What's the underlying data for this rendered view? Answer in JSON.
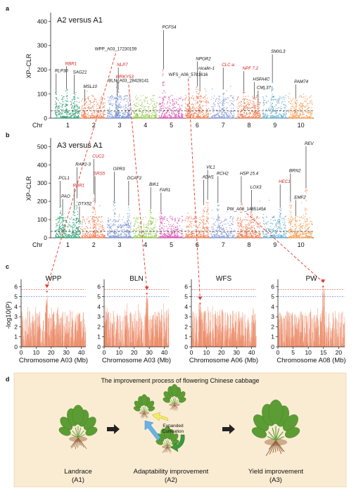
{
  "panel_letters": {
    "a": "a",
    "b": "b",
    "c": "c",
    "d": "d"
  },
  "chart_data": [
    {
      "type": "scatter",
      "panel": "a",
      "comparison": "A2 versus A1",
      "ylabel": "XP–CLR",
      "xlabel": "Chr",
      "yticks": [
        0,
        100,
        200,
        300,
        400
      ],
      "ylim": [
        0,
        430
      ],
      "chromosomes": [
        "1",
        "2",
        "3",
        "4",
        "5",
        "6",
        "7",
        "8",
        "9",
        "10"
      ],
      "chr_colors": [
        "#3da37c",
        "#f0845a",
        "#7e97cf",
        "#9ac95a",
        "#d85cb5",
        "#f0845a",
        "#8ea0d8",
        "#f0845a",
        "#6fb0cf",
        "#f5a25a"
      ],
      "threshold": 30,
      "genes": [
        {
          "name": "RLP30",
          "chr": 1,
          "pos": 0.05,
          "value": 190,
          "red": false
        },
        {
          "name": "RBR1",
          "chr": 1,
          "pos": 0.45,
          "value": 220,
          "red": true
        },
        {
          "name": "SAG21",
          "chr": 1,
          "pos": 0.75,
          "value": 185,
          "red": false
        },
        {
          "name": "MSL10",
          "chr": 2,
          "pos": 0.15,
          "value": 125,
          "red": false
        },
        {
          "name": "NLP7",
          "chr": 3,
          "pos": 0.45,
          "value": 215,
          "red": true
        },
        {
          "name": "WRKY53",
          "chr": 3,
          "pos": 0.4,
          "value": 165,
          "red": true
        },
        {
          "name": "PCFS4",
          "chr": 5,
          "pos": 0.2,
          "value": 370,
          "red": false
        },
        {
          "name": "NPGR2",
          "chr": 6,
          "pos": 0.5,
          "value": 240,
          "red": false
        },
        {
          "name": "nicalin-1",
          "chr": 6,
          "pos": 0.6,
          "value": 200,
          "red": false
        },
        {
          "name": "CLC-a",
          "chr": 7,
          "pos": 0.5,
          "value": 215,
          "red": true
        },
        {
          "name": "NPF 7.2",
          "chr": 8,
          "pos": 0.3,
          "value": 200,
          "red": true
        },
        {
          "name": "HSFA4C",
          "chr": 8,
          "pos": 0.7,
          "value": 155,
          "red": false
        },
        {
          "name": "CML37",
          "chr": 8,
          "pos": 0.85,
          "value": 120,
          "red": false
        },
        {
          "name": "SMXL3",
          "chr": 9,
          "pos": 0.4,
          "value": 270,
          "red": false
        },
        {
          "name": "PAM74",
          "chr": 10,
          "pos": 0.3,
          "value": 145,
          "red": false
        }
      ],
      "snps": [
        {
          "name": "WPP_A03_17230159",
          "chr": 3,
          "pos": 0.35,
          "value": 280
        },
        {
          "name": "BLN_A03_28428141",
          "chr": 3,
          "pos": 0.85,
          "value": 150
        },
        {
          "name": "WFS_A06_5781616",
          "chr": 6,
          "pos": 0.15,
          "value": 175
        }
      ]
    },
    {
      "type": "scatter",
      "panel": "b",
      "comparison": "A3 versus A1",
      "ylabel": "XP–CLR",
      "xlabel": "Chr",
      "yticks": [
        0,
        100,
        200,
        300,
        400,
        500
      ],
      "ylim": [
        0,
        540
      ],
      "chromosomes": [
        "1",
        "2",
        "3",
        "4",
        "5",
        "6",
        "7",
        "8",
        "9",
        "10"
      ],
      "chr_colors": [
        "#3da37c",
        "#f0845a",
        "#7e97cf",
        "#9ac95a",
        "#d85cb5",
        "#f0845a",
        "#8ea0d8",
        "#f0845a",
        "#6fb0cf",
        "#f5a25a"
      ],
      "threshold": 35,
      "genes": [
        {
          "name": "CUC2",
          "chr": 2,
          "pos": 0.5,
          "value": 440,
          "red": true
        },
        {
          "name": "RAP2-3",
          "chr": 1,
          "pos": 0.85,
          "value": 395,
          "red": false
        },
        {
          "name": "SRS5",
          "chr": 2,
          "pos": 0.55,
          "value": 345,
          "red": true
        },
        {
          "name": "PCL1",
          "chr": 1,
          "pos": 0.2,
          "value": 320,
          "red": false
        },
        {
          "name": "RBR1",
          "chr": 1,
          "pos": 0.75,
          "value": 280,
          "red": true
        },
        {
          "name": "PAO",
          "chr": 1,
          "pos": 0.3,
          "value": 220,
          "red": false
        },
        {
          "name": "DTX52",
          "chr": 1,
          "pos": 0.95,
          "value": 180,
          "red": false
        },
        {
          "name": "OPR3",
          "chr": 3,
          "pos": 0.3,
          "value": 370,
          "red": false
        },
        {
          "name": "DCAF2",
          "chr": 3,
          "pos": 0.85,
          "value": 320,
          "red": false
        },
        {
          "name": "BIK1",
          "chr": 4,
          "pos": 0.7,
          "value": 285,
          "red": false
        },
        {
          "name": "FAR1",
          "chr": 5,
          "pos": 0.1,
          "value": 255,
          "red": false
        },
        {
          "name": "VIL1",
          "chr": 6,
          "pos": 0.9,
          "value": 380,
          "red": false
        },
        {
          "name": "ADH1",
          "chr": 6,
          "pos": 0.75,
          "value": 325,
          "red": false
        },
        {
          "name": "RCH2",
          "chr": 7,
          "pos": 0.3,
          "value": 345,
          "red": false
        },
        {
          "name": "HSP 15.4",
          "chr": 8,
          "pos": 0.2,
          "value": 345,
          "red": false
        },
        {
          "name": "LOX3",
          "chr": 8,
          "pos": 0.6,
          "value": 270,
          "red": false
        },
        {
          "name": "REV",
          "chr": 10,
          "pos": 0.7,
          "value": 510,
          "red": false
        },
        {
          "name": "BRN2",
          "chr": 10,
          "pos": 0.1,
          "value": 360,
          "red": false
        },
        {
          "name": "HEC1",
          "chr": 9,
          "pos": 0.7,
          "value": 300,
          "red": true
        },
        {
          "name": "EMF2",
          "chr": 10,
          "pos": 0.3,
          "value": 215,
          "red": false
        }
      ],
      "snps": [
        {
          "name": "PW_A08_14851454",
          "chr": 8,
          "pos": 0.4,
          "value": 150
        }
      ]
    },
    {
      "type": "scatter",
      "panel": "c",
      "title": "WPP",
      "ylabel": "-log10(P)",
      "xlabel": "Chromosome A03 (Mb)",
      "xticks": [
        0,
        10,
        20,
        30,
        40
      ],
      "xlim": [
        0,
        43
      ],
      "yticks": [
        0,
        1,
        2,
        3,
        4,
        5,
        6
      ],
      "ylim": [
        0,
        6.3
      ],
      "red_line": 5.7,
      "blue_line": 5.0,
      "peak": {
        "x": 17.2,
        "y": 5.5
      }
    },
    {
      "type": "scatter",
      "panel": "c",
      "title": "BLN",
      "ylabel": "",
      "xlabel": "Chromosome A03 (Mb)",
      "xticks": [
        0,
        10,
        20,
        30,
        40
      ],
      "xlim": [
        0,
        43
      ],
      "yticks": [
        0,
        1,
        2,
        3,
        4,
        5,
        6
      ],
      "ylim": [
        0,
        6.3
      ],
      "red_line": 5.7,
      "blue_line": 5.0,
      "peak": {
        "x": 28.4,
        "y": 5.3
      }
    },
    {
      "type": "scatter",
      "panel": "c",
      "title": "WFS",
      "ylabel": "",
      "xlabel": "Chromosome A06 (Mb)",
      "xticks": [
        0,
        10,
        20,
        30,
        40
      ],
      "xlim": [
        0,
        43
      ],
      "yticks": [
        0,
        1,
        2,
        3,
        4,
        5,
        6
      ],
      "ylim": [
        0,
        6.3
      ],
      "red_line": 5.7,
      "blue_line": 5.0,
      "peak": {
        "x": 5.8,
        "y": 4.3
      }
    },
    {
      "type": "scatter",
      "panel": "c",
      "title": "PW",
      "ylabel": "",
      "xlabel": "Chromosome A08 (Mb)",
      "xticks": [
        0,
        5,
        10,
        15,
        20
      ],
      "xlim": [
        0,
        22
      ],
      "yticks": [
        0,
        1,
        2,
        3,
        4,
        5,
        6
      ],
      "ylim": [
        0,
        6.3
      ],
      "red_line": 5.7,
      "blue_line": 5.0,
      "peak": {
        "x": 14.9,
        "y": 6.0
      }
    }
  ],
  "panel_d": {
    "title": "The improvement process of flowering Chinese cabbage",
    "stages": [
      {
        "label": "Landrace",
        "code": "(A1)"
      },
      {
        "label": "Adaptability improvement",
        "code": "(A2)"
      },
      {
        "label": "Yield improvement",
        "code": "(A3)"
      }
    ],
    "cycle_label": [
      "Expanded",
      "Cultivation"
    ]
  }
}
